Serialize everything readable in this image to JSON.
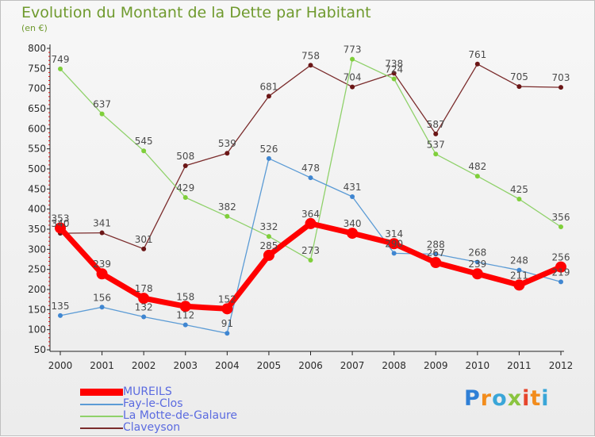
{
  "chart_data": {
    "type": "line",
    "title": "Evolution du Montant de la Dette par Habitant",
    "subtitle": "(en €)",
    "categories": [
      "2000",
      "2001",
      "2002",
      "2003",
      "2004",
      "2005",
      "2006",
      "2007",
      "2008",
      "2009",
      "2010",
      "2011",
      "2012"
    ],
    "ylim": [
      50,
      800
    ],
    "yticks": [
      50,
      100,
      150,
      200,
      250,
      300,
      350,
      400,
      450,
      500,
      550,
      600,
      650,
      700,
      750,
      800
    ],
    "grid": false,
    "legend_position": "bottom-left",
    "series": [
      {
        "name": "MUREILS",
        "color": "#ff0000",
        "values": [
          353,
          239,
          178,
          158,
          152,
          285,
          364,
          340,
          314,
          267,
          239,
          211,
          256
        ],
        "labels": [
          "353",
          "239",
          "178",
          "158",
          "152",
          "285",
          "364",
          "340",
          "314",
          "267",
          "239",
          "211",
          "256"
        ]
      },
      {
        "name": "Fay-le-Clos",
        "color": "#5b9bd5",
        "values": [
          135,
          156,
          132,
          112,
          91,
          526,
          478,
          431,
          290,
          288,
          268,
          248,
          219
        ],
        "labels": [
          "135",
          "156",
          "132",
          "112",
          "91",
          "526",
          "478",
          "431",
          "290",
          "288",
          "268",
          "248",
          "219"
        ]
      },
      {
        "name": "La Motte-de-Galaure",
        "color": "#8fd16a",
        "values": [
          749,
          637,
          545,
          429,
          382,
          332,
          273,
          773,
          724,
          537,
          482,
          425,
          356
        ],
        "labels": [
          "749",
          "637",
          "545",
          "429",
          "382",
          "332",
          "273",
          "773",
          "724",
          "537",
          "482",
          "425",
          "356"
        ]
      },
      {
        "name": "Claveyson",
        "color": "#7b2c2c",
        "values": [
          340,
          341,
          301,
          508,
          539,
          681,
          758,
          704,
          738,
          587,
          761,
          705,
          703
        ],
        "labels": [
          "340",
          "341",
          "301",
          "508",
          "539",
          "681",
          "758",
          "704",
          "738",
          "587",
          "761",
          "705",
          "703"
        ]
      }
    ]
  },
  "logo": {
    "letters": [
      "P",
      "r",
      "o",
      "x",
      "i",
      "t",
      "i"
    ]
  }
}
